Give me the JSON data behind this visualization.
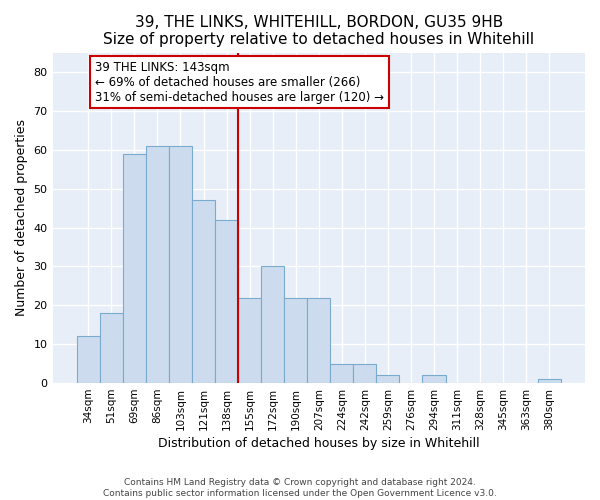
{
  "title": "39, THE LINKS, WHITEHILL, BORDON, GU35 9HB",
  "subtitle": "Size of property relative to detached houses in Whitehill",
  "xlabel": "Distribution of detached houses by size in Whitehill",
  "ylabel": "Number of detached properties",
  "categories": [
    "34sqm",
    "51sqm",
    "69sqm",
    "86sqm",
    "103sqm",
    "121sqm",
    "138sqm",
    "155sqm",
    "172sqm",
    "190sqm",
    "207sqm",
    "224sqm",
    "242sqm",
    "259sqm",
    "276sqm",
    "294sqm",
    "311sqm",
    "328sqm",
    "345sqm",
    "363sqm",
    "380sqm"
  ],
  "values": [
    12,
    18,
    59,
    61,
    61,
    47,
    42,
    22,
    30,
    22,
    22,
    5,
    5,
    2,
    0,
    2,
    0,
    0,
    0,
    0,
    1
  ],
  "bar_color": "#ccdcee",
  "bar_edge_color": "#7baacf",
  "bg_color": "#e8eef8",
  "grid_color": "#ffffff",
  "vline_x": 6.5,
  "vline_color": "#cc0000",
  "annotation_line1": "39 THE LINKS: 143sqm",
  "annotation_line2": "← 69% of detached houses are smaller (266)",
  "annotation_line3": "31% of semi-detached houses are larger (120) →",
  "ylim": [
    0,
    85
  ],
  "yticks": [
    0,
    10,
    20,
    30,
    40,
    50,
    60,
    70,
    80
  ],
  "footer": "Contains HM Land Registry data © Crown copyright and database right 2024.\nContains public sector information licensed under the Open Government Licence v3.0.",
  "title_fontsize": 11,
  "subtitle_fontsize": 10,
  "xlabel_fontsize": 9,
  "ylabel_fontsize": 9,
  "fig_bg": "#ffffff"
}
